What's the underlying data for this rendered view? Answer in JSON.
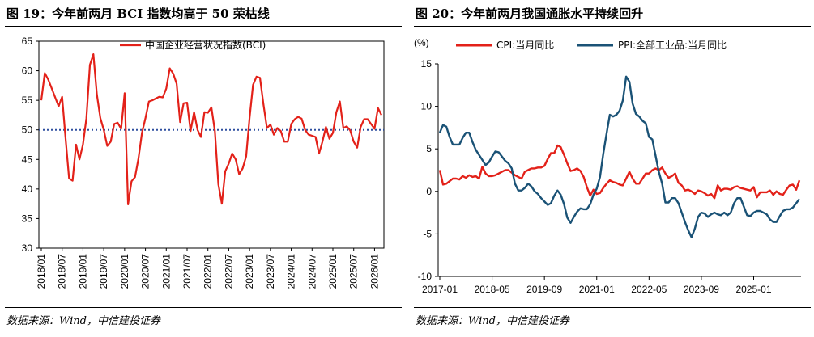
{
  "left_panel": {
    "title": "图 19：今年前两月 BCI 指数均高于 50 荣枯线",
    "source": "数据来源：Wind，中信建投证券"
  },
  "right_panel": {
    "title": "图 20：今年前两月我国通胀水平持续回升",
    "source": "数据来源：Wind，中信建投证券"
  },
  "chart_data": [
    {
      "type": "line",
      "title": "",
      "xlabel": "",
      "ylabel": "",
      "ylim": [
        30,
        65
      ],
      "yticks": [
        30,
        35,
        40,
        45,
        50,
        55,
        60,
        65
      ],
      "x_tick_labels": [
        "2018/01",
        "2018/07",
        "2019/01",
        "2019/07",
        "2020/01",
        "2020/07",
        "2021/01",
        "2021/07",
        "2022/01",
        "2022/07",
        "2023/01",
        "2023/07",
        "2024/01",
        "2024/07",
        "2025/01",
        "2025/07",
        "2026/01"
      ],
      "x_start": "2018/01",
      "x_end": "2026/02",
      "reference_line": {
        "value": 50,
        "style": "dotted",
        "color": "#2f4f9f"
      },
      "grid": false,
      "legend_position": "top",
      "series": [
        {
          "name": "中国企业经营状况指数(BCI)",
          "color": "#e32119",
          "values": [
            55.0,
            59.6,
            58.5,
            57.0,
            55.5,
            54.0,
            55.6,
            48.5,
            41.8,
            41.4,
            47.5,
            45.0,
            47.5,
            52.0,
            61.0,
            62.8,
            56.0,
            52.0,
            50.0,
            47.3,
            48.0,
            51.0,
            51.2,
            50.2,
            56.2,
            37.4,
            41.3,
            42.0,
            45.2,
            49.5,
            52.0,
            54.8,
            55.0,
            55.3,
            55.6,
            55.5,
            57.0,
            60.4,
            59.5,
            57.8,
            51.3,
            54.5,
            54.6,
            49.8,
            53.0,
            50.0,
            48.8,
            53.0,
            52.9,
            53.8,
            49.8,
            40.8,
            37.5,
            43.0,
            44.3,
            46.0,
            45.0,
            42.5,
            43.5,
            45.5,
            52.0,
            57.6,
            59.0,
            58.8,
            54.3,
            50.3,
            50.9,
            49.2,
            50.3,
            49.8,
            48.0,
            48.0,
            51.0,
            51.8,
            52.2,
            51.9,
            50.0,
            49.2,
            49.0,
            48.8,
            46.0,
            48.0,
            50.5,
            48.5,
            49.5,
            53.0,
            54.8,
            50.3,
            50.6,
            49.9,
            48.0,
            47.0,
            50.5,
            51.8,
            51.8,
            51.0,
            50.2,
            53.7,
            52.5
          ]
        }
      ]
    },
    {
      "type": "line",
      "title": "",
      "xlabel": "",
      "ylabel": "(%)",
      "ylim": [
        -10,
        15
      ],
      "yticks": [
        -10,
        -5,
        0,
        5,
        10,
        15
      ],
      "x_tick_labels": [
        "2017-01",
        "2018-05",
        "2019-09",
        "2021-01",
        "2022-05",
        "2023-09",
        "2025-01"
      ],
      "x_start": "2017-01",
      "x_end": "2026-02",
      "grid": false,
      "legend_position": "top",
      "series": [
        {
          "name": "CPI:当月同比",
          "color": "#e32119",
          "values": [
            2.5,
            0.8,
            0.9,
            1.2,
            1.5,
            1.5,
            1.4,
            1.8,
            1.6,
            1.9,
            1.7,
            1.8,
            1.5,
            2.9,
            2.1,
            1.8,
            1.8,
            1.9,
            2.1,
            2.3,
            2.5,
            2.5,
            2.2,
            1.9,
            1.7,
            1.5,
            2.3,
            2.5,
            2.7,
            2.7,
            2.8,
            2.8,
            3.0,
            3.8,
            4.5,
            4.5,
            5.4,
            5.2,
            4.3,
            3.3,
            2.4,
            2.5,
            2.7,
            2.4,
            1.7,
            0.5,
            -0.5,
            0.2,
            -0.3,
            -0.2,
            0.4,
            0.9,
            1.3,
            1.1,
            1.0,
            0.8,
            0.7,
            1.5,
            2.3,
            1.5,
            0.9,
            0.9,
            1.5,
            2.1,
            2.1,
            2.5,
            2.7,
            2.5,
            2.8,
            2.1,
            1.6,
            1.8,
            2.1,
            1.0,
            0.7,
            0.1,
            0.2,
            0.0,
            -0.3,
            0.1,
            0.0,
            -0.2,
            -0.5,
            -0.3,
            -0.8,
            0.7,
            0.1,
            0.3,
            0.3,
            0.2,
            0.5,
            0.6,
            0.4,
            0.3,
            0.2,
            0.1,
            0.5,
            -0.7,
            -0.1,
            -0.1,
            -0.1,
            0.1,
            -0.4,
            0.0,
            -0.3,
            -0.4,
            0.2,
            0.7,
            0.8,
            0.2,
            1.3
          ]
        },
        {
          "name": "PPI:全部工业品:当月同比",
          "color": "#1a5276",
          "values": [
            6.9,
            7.8,
            7.6,
            6.4,
            5.5,
            5.5,
            5.5,
            6.3,
            6.9,
            6.9,
            5.8,
            4.9,
            4.3,
            3.7,
            3.1,
            3.4,
            4.1,
            4.7,
            4.6,
            4.1,
            3.6,
            3.3,
            2.7,
            0.9,
            0.1,
            0.1,
            0.4,
            0.9,
            0.6,
            0.0,
            -0.3,
            -0.8,
            -1.2,
            -1.6,
            -1.4,
            -0.5,
            0.1,
            -0.4,
            -1.5,
            -3.1,
            -3.7,
            -3.0,
            -2.4,
            -2.0,
            -2.1,
            -2.1,
            -1.5,
            -0.4,
            0.3,
            1.7,
            4.4,
            6.8,
            9.0,
            8.8,
            9.0,
            9.5,
            10.7,
            13.5,
            12.9,
            10.3,
            9.1,
            8.8,
            8.3,
            8.0,
            6.4,
            6.1,
            4.2,
            2.3,
            0.9,
            -1.3,
            -1.3,
            -0.8,
            -0.8,
            -1.4,
            -2.5,
            -3.6,
            -4.6,
            -5.4,
            -4.4,
            -3.0,
            -2.5,
            -2.6,
            -3.0,
            -2.7,
            -2.5,
            -2.7,
            -2.8,
            -2.5,
            -2.8,
            -2.5,
            -1.4,
            -0.8,
            -0.8,
            -1.8,
            -2.8,
            -2.9,
            -2.5,
            -2.3,
            -2.3,
            -2.5,
            -2.7,
            -3.3,
            -3.6,
            -3.6,
            -2.9,
            -2.3,
            -2.1,
            -2.1,
            -1.9,
            -1.4,
            -0.9
          ]
        }
      ]
    }
  ]
}
